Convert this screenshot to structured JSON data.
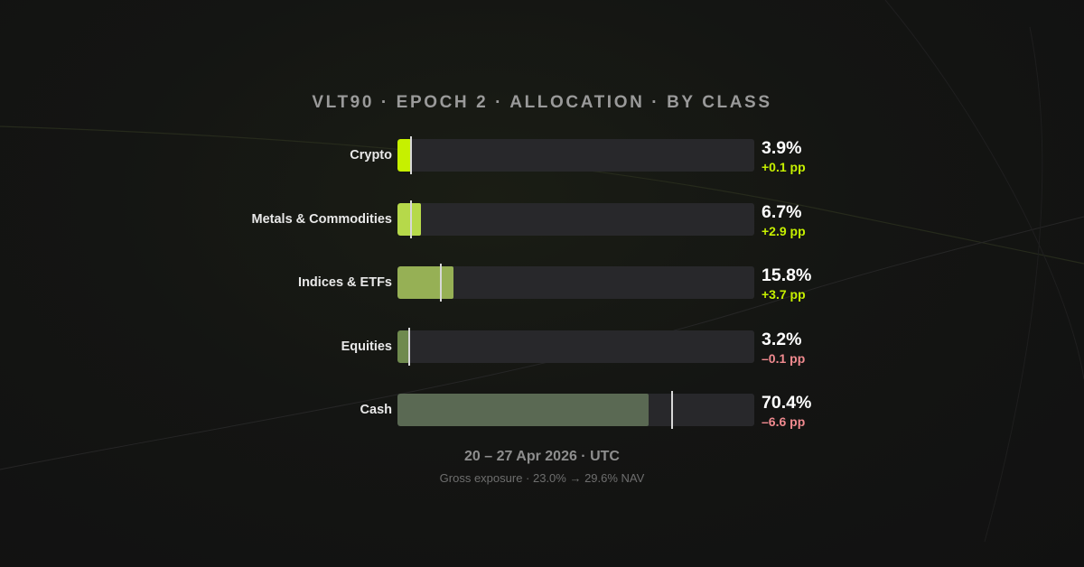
{
  "chart_data": {
    "type": "bar",
    "orientation": "horizontal",
    "title": "VLT90 · EPOCH 2 · ALLOCATION · BY CLASS",
    "xlim": [
      0,
      100
    ],
    "categories": [
      "Crypto",
      "Metals & Commodities",
      "Indices & ETFs",
      "Equities",
      "Cash"
    ],
    "values": [
      3.9,
      6.7,
      15.8,
      3.2,
      70.4
    ],
    "value_labels": [
      "3.9%",
      "6.7%",
      "15.8%",
      "3.2%",
      "70.4%"
    ],
    "deltas": [
      0.1,
      2.9,
      3.7,
      -0.1,
      -6.6
    ],
    "delta_labels": [
      "+0.1 pp",
      "+2.9 pp",
      "+3.7 pp",
      "–0.1 pp",
      "–6.6 pp"
    ],
    "previous_values": [
      3.8,
      3.8,
      12.1,
      3.3,
      77.0
    ],
    "bar_colors": [
      "#c6f000",
      "#b6d94a",
      "#96b055",
      "#6f8a4e",
      "#5a6953"
    ],
    "delta_positive_color": "#c6f000",
    "delta_negative_color": "#f08a8f",
    "track_color": "#28282b",
    "marker_color": "#d8d8d8",
    "grid": false,
    "legend": "none"
  },
  "footer": {
    "period": "20 – 27 Apr 2026 · UTC",
    "note": "Gross exposure · 23.0% → 29.6% NAV"
  }
}
